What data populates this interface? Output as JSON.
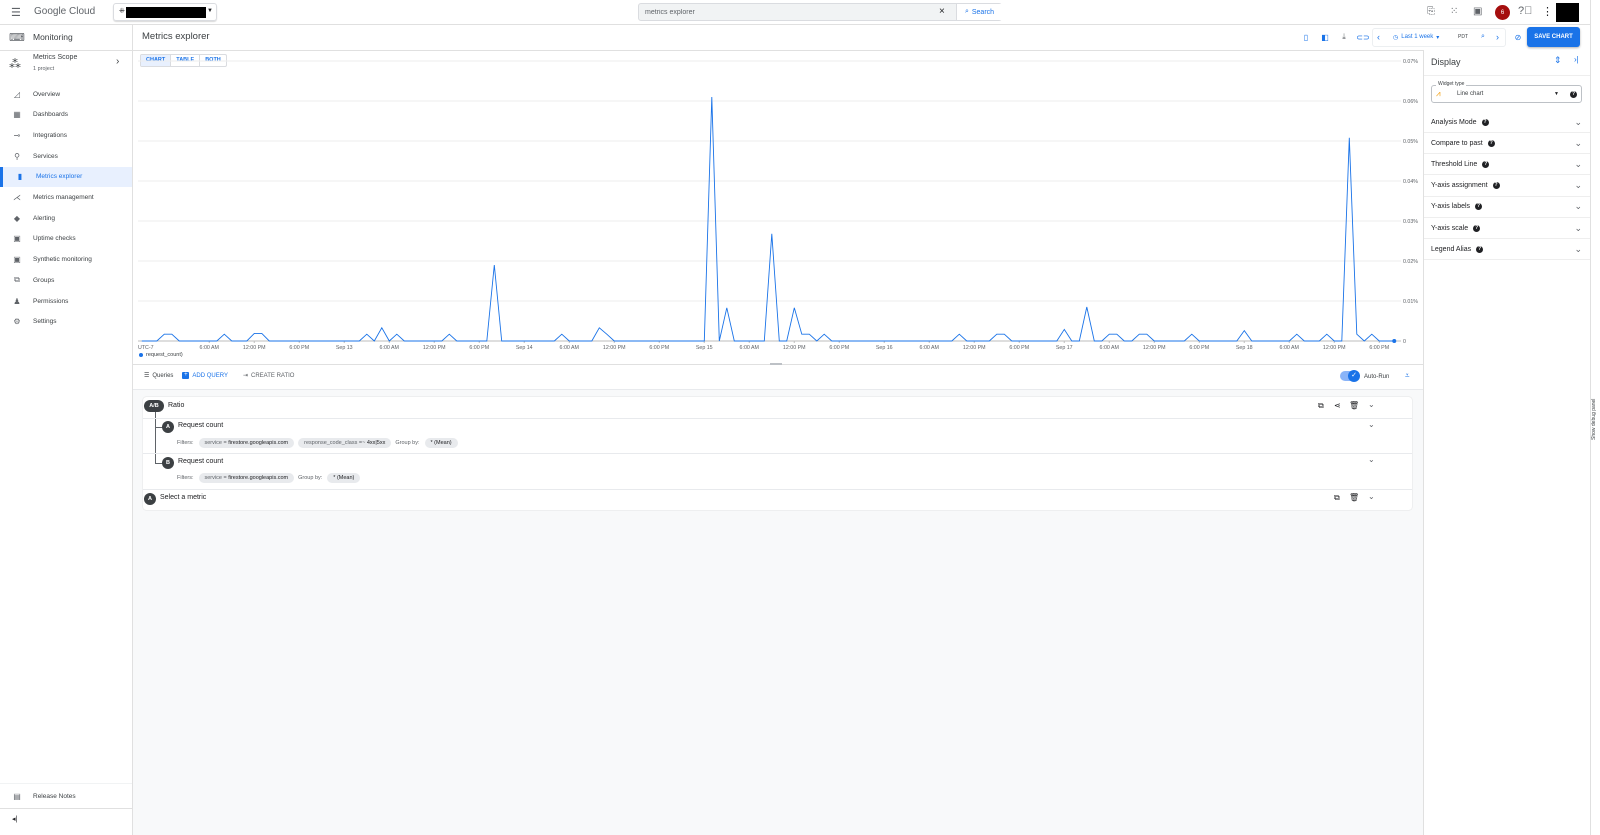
{
  "topbar": {
    "brand": "Google Cloud",
    "search_value": "metrics explorer",
    "search_button": "Search",
    "notification_count": "6",
    "icons": [
      "menu-icon",
      "feedback-icon",
      "apps-icon",
      "cloud-shell-icon",
      "notifications-icon",
      "help-icon",
      "more-vert-icon"
    ]
  },
  "sidebar": {
    "product": "Monitoring",
    "scope_title": "Metrics Scope",
    "scope_sub": "1 project",
    "items": [
      {
        "label": "Overview",
        "icon": "◿"
      },
      {
        "label": "Dashboards",
        "icon": "▦"
      },
      {
        "label": "Integrations",
        "icon": "⊸"
      },
      {
        "label": "Services",
        "icon": "⚲"
      },
      {
        "label": "Metrics explorer",
        "icon": "▮",
        "active": true
      },
      {
        "label": "Metrics management",
        "icon": "⋌"
      },
      {
        "label": "Alerting",
        "icon": "◆"
      },
      {
        "label": "Uptime checks",
        "icon": "▣"
      },
      {
        "label": "Synthetic monitoring",
        "icon": "▣"
      },
      {
        "label": "Groups",
        "icon": "⧉"
      },
      {
        "label": "Permissions",
        "icon": "♟"
      },
      {
        "label": "Settings",
        "icon": "⚙"
      }
    ],
    "release_notes": "Release Notes"
  },
  "main": {
    "title": "Metrics explorer",
    "view_tabs": [
      "CHART",
      "TABLE",
      "BOTH"
    ],
    "active_view": "CHART",
    "time_range": "Last 1 week",
    "timezone": "PDT",
    "save_chart": "SAVE CHART"
  },
  "chart_data": {
    "type": "line",
    "timezone_label": "UTC-7",
    "xlim": [
      "Sep 11 20:30",
      "Sep 18 20:30"
    ],
    "ylim": [
      0,
      0.07
    ],
    "y_unit": "%",
    "y_ticks": [
      "0",
      "0.01%",
      "0.02%",
      "0.03%",
      "0.04%",
      "0.05%",
      "0.06%",
      "0.07%"
    ],
    "x_ticks": [
      {
        "t": "Sep 12 06:00",
        "label": "6:00 AM"
      },
      {
        "t": "Sep 12 12:00",
        "label": "12:00 PM"
      },
      {
        "t": "Sep 12 18:00",
        "label": "6:00 PM"
      },
      {
        "t": "Sep 13 00:00",
        "label": "Sep 13"
      },
      {
        "t": "Sep 13 06:00",
        "label": "6:00 AM"
      },
      {
        "t": "Sep 13 12:00",
        "label": "12:00 PM"
      },
      {
        "t": "Sep 13 18:00",
        "label": "6:00 PM"
      },
      {
        "t": "Sep 14 00:00",
        "label": "Sep 14"
      },
      {
        "t": "Sep 14 06:00",
        "label": "6:00 AM"
      },
      {
        "t": "Sep 14 12:00",
        "label": "12:00 PM"
      },
      {
        "t": "Sep 14 18:00",
        "label": "6:00 PM"
      },
      {
        "t": "Sep 15 00:00",
        "label": "Sep 15"
      },
      {
        "t": "Sep 15 06:00",
        "label": "6:00 AM"
      },
      {
        "t": "Sep 15 12:00",
        "label": "12:00 PM"
      },
      {
        "t": "Sep 15 18:00",
        "label": "6:00 PM"
      },
      {
        "t": "Sep 16 00:00",
        "label": "Sep 16"
      },
      {
        "t": "Sep 16 06:00",
        "label": "6:00 AM"
      },
      {
        "t": "Sep 16 12:00",
        "label": "12:00 PM"
      },
      {
        "t": "Sep 16 18:00",
        "label": "6:00 PM"
      },
      {
        "t": "Sep 17 00:00",
        "label": "Sep 17"
      },
      {
        "t": "Sep 17 06:00",
        "label": "6:00 AM"
      },
      {
        "t": "Sep 17 12:00",
        "label": "12:00 PM"
      },
      {
        "t": "Sep 17 18:00",
        "label": "6:00 PM"
      },
      {
        "t": "Sep 18 00:00",
        "label": "Sep 18"
      },
      {
        "t": "Sep 18 06:00",
        "label": "6:00 AM"
      },
      {
        "t": "Sep 18 12:00",
        "label": "12:00 PM"
      },
      {
        "t": "Sep 18 18:00",
        "label": "6:00 PM"
      }
    ],
    "grid": true,
    "legend_position": "bottom-left",
    "series": [
      {
        "name": "request_count)",
        "color": "#1a73e8",
        "points": [
          [
            "Sep 11 21:00",
            0
          ],
          [
            "Sep 11 23:00",
            0
          ],
          [
            "Sep 12 00:00",
            0.0017
          ],
          [
            "Sep 12 01:00",
            0.0017
          ],
          [
            "Sep 12 02:00",
            0
          ],
          [
            "Sep 12 07:00",
            0
          ],
          [
            "Sep 12 08:00",
            0.0017
          ],
          [
            "Sep 12 09:00",
            0
          ],
          [
            "Sep 12 11:00",
            0
          ],
          [
            "Sep 12 12:00",
            0.0019
          ],
          [
            "Sep 12 13:00",
            0.0019
          ],
          [
            "Sep 12 14:00",
            0
          ],
          [
            "Sep 13 02:00",
            0
          ],
          [
            "Sep 13 03:00",
            0.0017
          ],
          [
            "Sep 13 04:00",
            0
          ],
          [
            "Sep 13 05:00",
            0.0033
          ],
          [
            "Sep 13 06:00",
            0
          ],
          [
            "Sep 13 07:00",
            0.0017
          ],
          [
            "Sep 13 08:00",
            0
          ],
          [
            "Sep 13 13:00",
            0
          ],
          [
            "Sep 13 14:00",
            0.0017
          ],
          [
            "Sep 13 15:00",
            0
          ],
          [
            "Sep 13 19:00",
            0
          ],
          [
            "Sep 13 20:00",
            0.019
          ],
          [
            "Sep 13 21:00",
            0
          ],
          [
            "Sep 14 04:00",
            0
          ],
          [
            "Sep 14 05:00",
            0.0017
          ],
          [
            "Sep 14 06:00",
            0
          ],
          [
            "Sep 14 09:00",
            0
          ],
          [
            "Sep 14 10:00",
            0.0033
          ],
          [
            "Sep 14 11:00",
            0.0017
          ],
          [
            "Sep 14 12:00",
            0
          ],
          [
            "Sep 15 00:00",
            0
          ],
          [
            "Sep 15 01:00",
            0.061
          ],
          [
            "Sep 15 02:00",
            0
          ],
          [
            "Sep 15 03:00",
            0.0083
          ],
          [
            "Sep 15 04:00",
            0
          ],
          [
            "Sep 15 08:00",
            0
          ],
          [
            "Sep 15 09:00",
            0.0268
          ],
          [
            "Sep 15 10:00",
            0
          ],
          [
            "Sep 15 11:00",
            0
          ],
          [
            "Sep 15 12:00",
            0.0083
          ],
          [
            "Sep 15 13:00",
            0.0017
          ],
          [
            "Sep 15 14:00",
            0.0017
          ],
          [
            "Sep 15 15:00",
            0
          ],
          [
            "Sep 15 16:00",
            0.0017
          ],
          [
            "Sep 15 17:00",
            0
          ],
          [
            "Sep 16 09:00",
            0
          ],
          [
            "Sep 16 10:00",
            0.0017
          ],
          [
            "Sep 16 11:00",
            0
          ],
          [
            "Sep 16 14:00",
            0
          ],
          [
            "Sep 16 15:00",
            0.0017
          ],
          [
            "Sep 16 16:00",
            0.0017
          ],
          [
            "Sep 16 17:00",
            0
          ],
          [
            "Sep 16 23:00",
            0
          ],
          [
            "Sep 17 00:00",
            0.0029
          ],
          [
            "Sep 17 01:00",
            0
          ],
          [
            "Sep 17 02:00",
            0
          ],
          [
            "Sep 17 03:00",
            0.0085
          ],
          [
            "Sep 17 04:00",
            0
          ],
          [
            "Sep 17 05:00",
            0
          ],
          [
            "Sep 17 06:00",
            0.0017
          ],
          [
            "Sep 17 07:00",
            0.0017
          ],
          [
            "Sep 17 08:00",
            0
          ],
          [
            "Sep 17 09:00",
            0
          ],
          [
            "Sep 17 10:00",
            0.0017
          ],
          [
            "Sep 17 11:00",
            0.0017
          ],
          [
            "Sep 17 12:00",
            0
          ],
          [
            "Sep 17 16:00",
            0
          ],
          [
            "Sep 17 17:00",
            0.0017
          ],
          [
            "Sep 17 18:00",
            0
          ],
          [
            "Sep 17 23:00",
            0
          ],
          [
            "Sep 18 00:00",
            0.0026
          ],
          [
            "Sep 18 01:00",
            0
          ],
          [
            "Sep 18 06:00",
            0
          ],
          [
            "Sep 18 07:00",
            0.0017
          ],
          [
            "Sep 18 08:00",
            0
          ],
          [
            "Sep 18 10:00",
            0
          ],
          [
            "Sep 18 11:00",
            0.0017
          ],
          [
            "Sep 18 12:00",
            0
          ],
          [
            "Sep 18 13:00",
            0
          ],
          [
            "Sep 18 14:00",
            0.0508
          ],
          [
            "Sep 18 15:00",
            0.0017
          ],
          [
            "Sep 18 16:00",
            0
          ],
          [
            "Sep 18 17:00",
            0.0017
          ],
          [
            "Sep 18 18:00",
            0
          ],
          [
            "Sep 18 20:00",
            0
          ]
        ]
      }
    ]
  },
  "queries": {
    "label": "Queries",
    "add_query": "ADD QUERY",
    "create_ratio": "CREATE RATIO",
    "auto_run": "Auto-Run",
    "auto_run_on": true,
    "ratio": {
      "badge": "A/B",
      "title": "Ratio"
    },
    "filters_label": "Filters:",
    "group_by_label": "Group by:",
    "a": {
      "badge": "A",
      "title": "Request count",
      "filter1_key": "service = ",
      "filter1_val": "firestore.googleapis.com",
      "filter2_key": "response_code_class =~ ",
      "filter2_val": "4xx|5xx",
      "group_by": "* (Mean)"
    },
    "b": {
      "badge": "B",
      "title": "Request count",
      "filter1_key": "service = ",
      "filter1_val": "firestore.googleapis.com",
      "group_by": "* (Mean)"
    },
    "new": {
      "badge": "A",
      "title": "Select a metric"
    }
  },
  "display_panel": {
    "title": "Display",
    "widget_type_label": "Widget type",
    "widget_type_value": "Line chart",
    "sections": [
      "Analysis Mode",
      "Compare to past",
      "Threshold Line",
      "Y-axis assignment",
      "Y-axis labels",
      "Y-axis scale",
      "Legend Alias"
    ]
  },
  "debug_panel": "Show debug panel"
}
